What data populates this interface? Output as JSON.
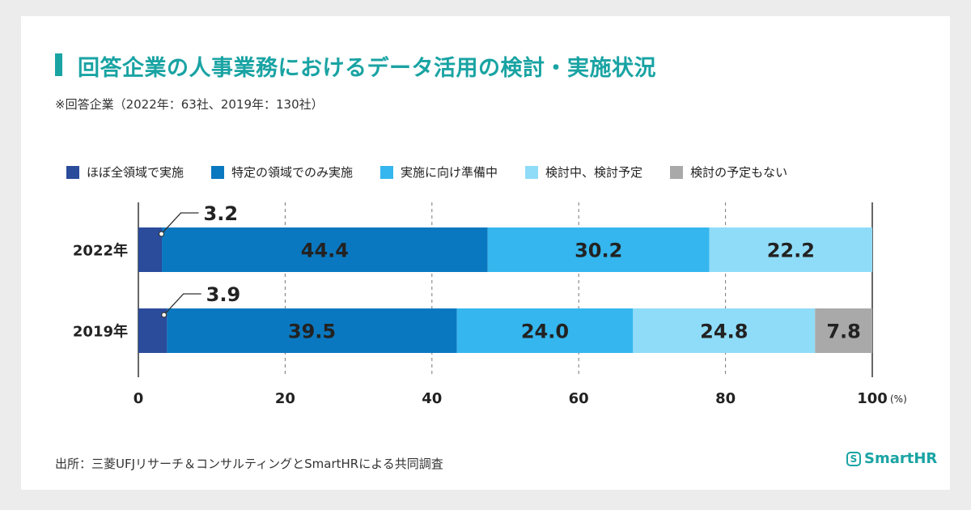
{
  "chart_data": {
    "type": "bar",
    "orientation": "horizontal-stacked",
    "title": "回答企業の人事業務におけるデータ活用の検討・実施状況",
    "subtitle": "※回答企業（2022年：63社、2019年：130社）",
    "unit": "(%)",
    "xlim": [
      0,
      100
    ],
    "ticks": [
      0,
      20,
      40,
      60,
      80,
      100
    ],
    "categories": [
      "2022年",
      "2019年"
    ],
    "series": [
      {
        "name": "ほぼ全領域で実施",
        "color": "#2b4b9b",
        "values": [
          3.2,
          3.9
        ]
      },
      {
        "name": "特定の領域でのみ実施",
        "color": "#0a78c0",
        "values": [
          44.4,
          39.5
        ]
      },
      {
        "name": "実施に向け準備中",
        "color": "#35b6ee",
        "values": [
          30.2,
          24.0
        ]
      },
      {
        "name": "検討中、検討予定",
        "color": "#8fdcf8",
        "values": [
          22.2,
          24.8
        ]
      },
      {
        "name": "検討の予定もない",
        "color": "#a9a9a9",
        "values": [
          0,
          7.8
        ]
      }
    ],
    "labels": [
      [
        "3.2",
        "44.4",
        "30.2",
        "22.2",
        ""
      ],
      [
        "3.9",
        "39.5",
        "24.0",
        "24.8",
        "7.8"
      ]
    ],
    "grid": "vertical-dashed",
    "legend_position": "top"
  },
  "footer": {
    "source": "出所：三菱UFJリサーチ＆コンサルティングとSmartHRによる共同調査"
  },
  "logo": {
    "mark": "S",
    "text": "SmartHR"
  }
}
